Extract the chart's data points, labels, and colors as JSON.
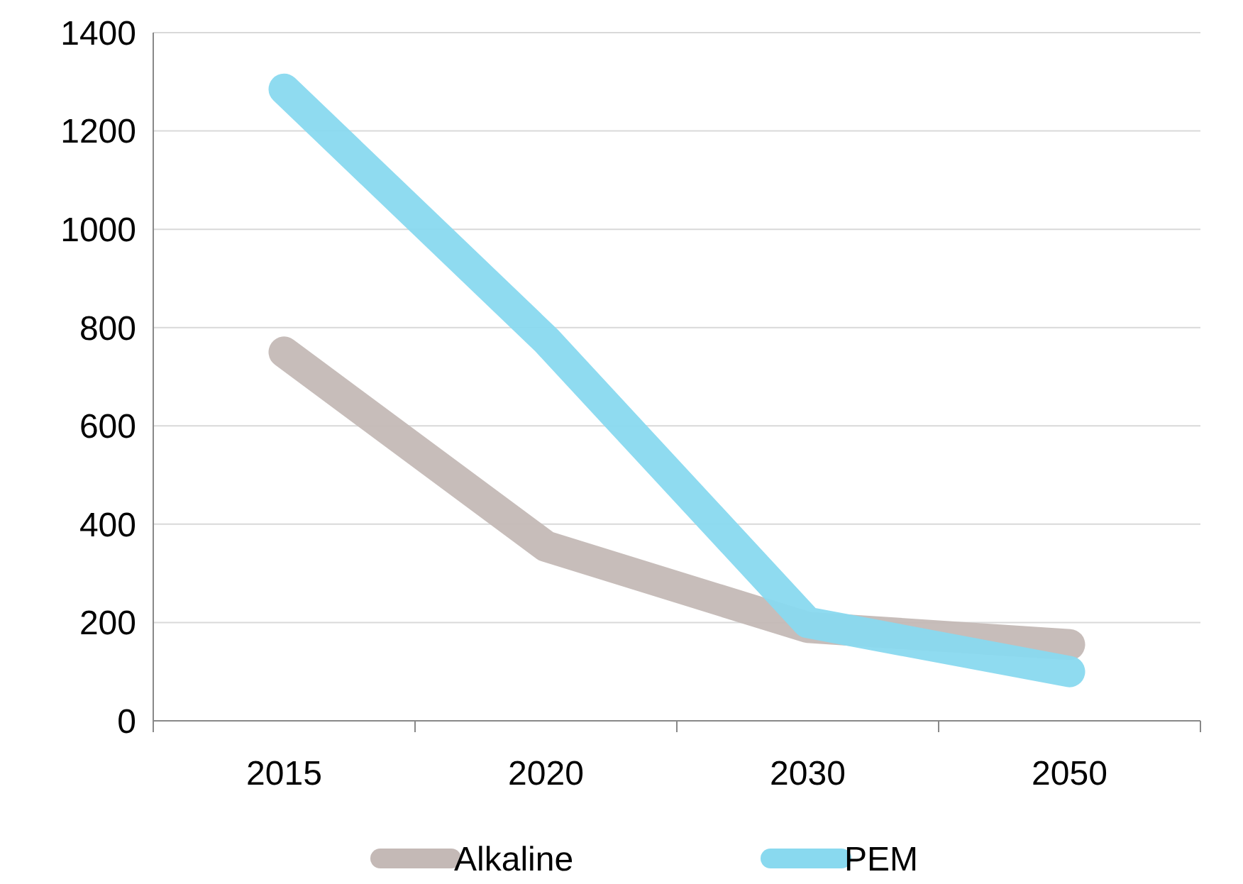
{
  "chart_data": {
    "type": "line",
    "categories": [
      "2015",
      "2020",
      "2030",
      "2050"
    ],
    "series": [
      {
        "name": "Alkaline",
        "color": "#c4b9b6",
        "values": [
          750,
          355,
          190,
          155
        ]
      },
      {
        "name": "PEM",
        "color": "#89d9ef",
        "values": [
          1285,
          775,
          200,
          100
        ]
      }
    ],
    "ylim": [
      0,
      1400
    ],
    "yticks": [
      0,
      200,
      400,
      600,
      800,
      1000,
      1200,
      1400
    ],
    "grid": "y",
    "legend": "bottom",
    "marker": "none",
    "line_style": "solid"
  }
}
